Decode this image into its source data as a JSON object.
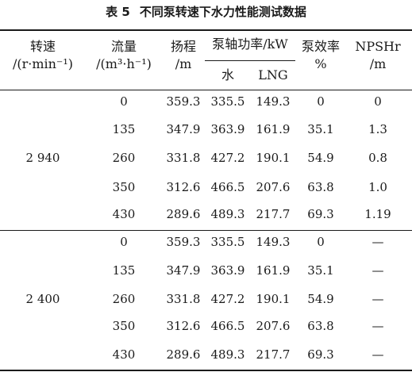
{
  "caption": {
    "number": "表 5",
    "title": "不同泵转速下水力性能测试数据"
  },
  "header": {
    "speed": [
      "转速",
      "/(r·min⁻¹)"
    ],
    "flow": [
      "流量",
      "/(m³·h⁻¹)"
    ],
    "head": [
      "扬程",
      "/m"
    ],
    "shaft_power": "泵轴功率/kW",
    "shaft_water": "水",
    "shaft_lng": "LNG",
    "efficiency": [
      "泵效率",
      "%"
    ],
    "npshr": [
      "NPSHr",
      "/m"
    ]
  },
  "groups": [
    {
      "speed": "2 940",
      "rows": [
        [
          "0",
          "359.3",
          "335.5",
          "149.3",
          "0",
          "0"
        ],
        [
          "135",
          "347.9",
          "363.9",
          "161.9",
          "35.1",
          "1.3"
        ],
        [
          "260",
          "331.8",
          "427.2",
          "190.1",
          "54.9",
          "0.8"
        ],
        [
          "350",
          "312.6",
          "466.5",
          "207.6",
          "63.8",
          "1.0"
        ],
        [
          "430",
          "289.6",
          "489.3",
          "217.7",
          "69.3",
          "1.19"
        ]
      ]
    },
    {
      "speed": "2 400",
      "rows": [
        [
          "0",
          "359.3",
          "335.5",
          "149.3",
          "0",
          "—"
        ],
        [
          "135",
          "347.9",
          "363.9",
          "161.9",
          "35.1",
          "—"
        ],
        [
          "260",
          "331.8",
          "427.2",
          "190.1",
          "54.9",
          "—"
        ],
        [
          "350",
          "312.6",
          "466.5",
          "207.6",
          "63.8",
          "—"
        ],
        [
          "430",
          "289.6",
          "489.3",
          "217.7",
          "69.3",
          "—"
        ]
      ]
    }
  ]
}
